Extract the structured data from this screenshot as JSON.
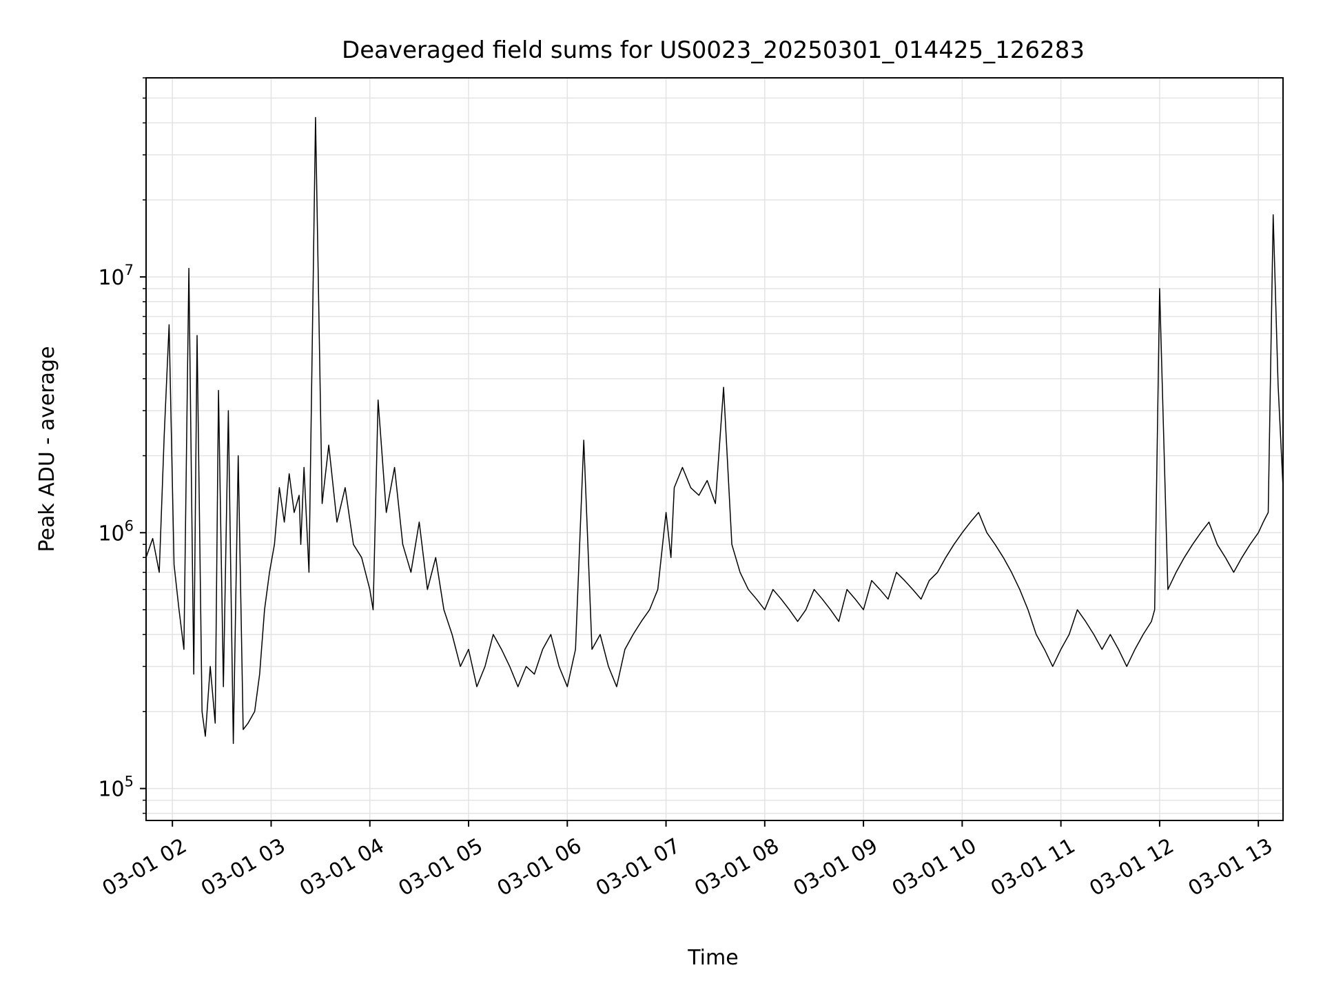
{
  "chart_data": {
    "type": "line",
    "title": "Deaveraged field sums for US0023_20250301_014425_126283",
    "xlabel": "Time",
    "ylabel": "Peak ADU - average",
    "x_ticks": [
      "03-01 02",
      "03-01 03",
      "03-01 04",
      "03-01 05",
      "03-01 06",
      "03-01 07",
      "03-01 08",
      "03-01 09",
      "03-01 10",
      "03-01 11",
      "03-01 12",
      "03-01 13"
    ],
    "y_scale": "log",
    "y_ticks": [
      {
        "value": 100000,
        "base": "10",
        "exp": "5"
      },
      {
        "value": 1000000,
        "base": "10",
        "exp": "6"
      },
      {
        "value": 10000000,
        "base": "10",
        "exp": "7"
      }
    ],
    "xlim": [
      "2025-03-01 01:44",
      "2025-03-01 13:15"
    ],
    "ylim": [
      75000,
      60000000
    ],
    "grid": true,
    "line_color": "#000000",
    "series": [
      {
        "x": [
          "2025-03-01 01:44",
          "2025-03-01 01:48",
          "2025-03-01 01:52",
          "2025-03-01 01:55",
          "2025-03-01 01:58",
          "2025-03-01 02:01",
          "2025-03-01 02:04",
          "2025-03-01 02:07",
          "2025-03-01 02:10",
          "2025-03-01 02:13",
          "2025-03-01 02:15",
          "2025-03-01 02:18",
          "2025-03-01 02:20",
          "2025-03-01 02:23",
          "2025-03-01 02:26",
          "2025-03-01 02:28",
          "2025-03-01 02:31",
          "2025-03-01 02:34",
          "2025-03-01 02:37",
          "2025-03-01 02:40",
          "2025-03-01 02:43",
          "2025-03-01 02:46",
          "2025-03-01 02:50",
          "2025-03-01 02:53",
          "2025-03-01 02:56",
          "2025-03-01 02:59",
          "2025-03-01 03:02",
          "2025-03-01 03:05",
          "2025-03-01 03:08",
          "2025-03-01 03:11",
          "2025-03-01 03:14",
          "2025-03-01 03:17",
          "2025-03-01 03:18",
          "2025-03-01 03:20",
          "2025-03-01 03:23",
          "2025-03-01 03:27",
          "2025-03-01 03:31",
          "2025-03-01 03:35",
          "2025-03-01 03:40",
          "2025-03-01 03:45",
          "2025-03-01 03:50",
          "2025-03-01 03:55",
          "2025-03-01 04:00",
          "2025-03-01 04:02",
          "2025-03-01 04:05",
          "2025-03-01 04:10",
          "2025-03-01 04:15",
          "2025-03-01 04:20",
          "2025-03-01 04:25",
          "2025-03-01 04:30",
          "2025-03-01 04:35",
          "2025-03-01 04:40",
          "2025-03-01 04:45",
          "2025-03-01 04:50",
          "2025-03-01 04:55",
          "2025-03-01 05:00",
          "2025-03-01 05:05",
          "2025-03-01 05:10",
          "2025-03-01 05:15",
          "2025-03-01 05:20",
          "2025-03-01 05:25",
          "2025-03-01 05:30",
          "2025-03-01 05:35",
          "2025-03-01 05:40",
          "2025-03-01 05:45",
          "2025-03-01 05:50",
          "2025-03-01 05:55",
          "2025-03-01 06:00",
          "2025-03-01 06:05",
          "2025-03-01 06:10",
          "2025-03-01 06:15",
          "2025-03-01 06:20",
          "2025-03-01 06:25",
          "2025-03-01 06:30",
          "2025-03-01 06:35",
          "2025-03-01 06:40",
          "2025-03-01 06:45",
          "2025-03-01 06:50",
          "2025-03-01 06:55",
          "2025-03-01 07:00",
          "2025-03-01 07:03",
          "2025-03-01 07:05",
          "2025-03-01 07:10",
          "2025-03-01 07:15",
          "2025-03-01 07:20",
          "2025-03-01 07:25",
          "2025-03-01 07:30",
          "2025-03-01 07:35",
          "2025-03-01 07:40",
          "2025-03-01 07:45",
          "2025-03-01 07:50",
          "2025-03-01 07:55",
          "2025-03-01 08:00",
          "2025-03-01 08:05",
          "2025-03-01 08:10",
          "2025-03-01 08:15",
          "2025-03-01 08:20",
          "2025-03-01 08:25",
          "2025-03-01 08:30",
          "2025-03-01 08:35",
          "2025-03-01 08:40",
          "2025-03-01 08:45",
          "2025-03-01 08:50",
          "2025-03-01 08:55",
          "2025-03-01 09:00",
          "2025-03-01 09:05",
          "2025-03-01 09:10",
          "2025-03-01 09:15",
          "2025-03-01 09:20",
          "2025-03-01 09:25",
          "2025-03-01 09:30",
          "2025-03-01 09:35",
          "2025-03-01 09:40",
          "2025-03-01 09:45",
          "2025-03-01 09:50",
          "2025-03-01 09:55",
          "2025-03-01 10:00",
          "2025-03-01 10:05",
          "2025-03-01 10:10",
          "2025-03-01 10:15",
          "2025-03-01 10:20",
          "2025-03-01 10:25",
          "2025-03-01 10:30",
          "2025-03-01 10:35",
          "2025-03-01 10:40",
          "2025-03-01 10:45",
          "2025-03-01 10:50",
          "2025-03-01 10:55",
          "2025-03-01 11:00",
          "2025-03-01 11:05",
          "2025-03-01 11:10",
          "2025-03-01 11:15",
          "2025-03-01 11:20",
          "2025-03-01 11:25",
          "2025-03-01 11:30",
          "2025-03-01 11:35",
          "2025-03-01 11:40",
          "2025-03-01 11:45",
          "2025-03-01 11:50",
          "2025-03-01 11:55",
          "2025-03-01 11:57",
          "2025-03-01 12:00",
          "2025-03-01 12:05",
          "2025-03-01 12:10",
          "2025-03-01 12:15",
          "2025-03-01 12:20",
          "2025-03-01 12:25",
          "2025-03-01 12:30",
          "2025-03-01 12:35",
          "2025-03-01 12:40",
          "2025-03-01 12:45",
          "2025-03-01 12:50",
          "2025-03-01 12:55",
          "2025-03-01 13:00",
          "2025-03-01 13:03",
          "2025-03-01 13:06",
          "2025-03-01 13:09",
          "2025-03-01 13:12",
          "2025-03-01 13:15"
        ],
        "y": [
          800000,
          950000,
          700000,
          2400000,
          6500000,
          750000,
          500000,
          350000,
          10800000,
          280000,
          5900000,
          200000,
          160000,
          300000,
          180000,
          3600000,
          250000,
          3000000,
          150000,
          2000000,
          170000,
          180000,
          200000,
          280000,
          500000,
          700000,
          900000,
          1500000,
          1100000,
          1700000,
          1200000,
          1400000,
          900000,
          1800000,
          700000,
          42000000,
          1300000,
          2200000,
          1100000,
          1500000,
          900000,
          800000,
          600000,
          500000,
          3300000,
          1200000,
          1800000,
          900000,
          700000,
          1100000,
          600000,
          800000,
          500000,
          400000,
          300000,
          350000,
          250000,
          300000,
          400000,
          350000,
          300000,
          250000,
          300000,
          280000,
          350000,
          400000,
          300000,
          250000,
          350000,
          2300000,
          350000,
          400000,
          300000,
          250000,
          350000,
          400000,
          450000,
          500000,
          600000,
          1200000,
          800000,
          1500000,
          1800000,
          1500000,
          1400000,
          1600000,
          1300000,
          3700000,
          900000,
          700000,
          600000,
          550000,
          500000,
          600000,
          550000,
          500000,
          450000,
          500000,
          600000,
          550000,
          500000,
          450000,
          600000,
          550000,
          500000,
          650000,
          600000,
          550000,
          700000,
          650000,
          600000,
          550000,
          650000,
          700000,
          800000,
          900000,
          1000000,
          1100000,
          1200000,
          1000000,
          900000,
          800000,
          700000,
          600000,
          500000,
          400000,
          350000,
          300000,
          350000,
          400000,
          500000,
          450000,
          400000,
          350000,
          400000,
          350000,
          300000,
          350000,
          400000,
          450000,
          500000,
          9000000,
          600000,
          700000,
          800000,
          900000,
          1000000,
          1100000,
          900000,
          800000,
          700000,
          800000,
          900000,
          1000000,
          1100000,
          1200000,
          17500000,
          3800000,
          1500000
        ],
        "y_original": [
          800000,
          950000,
          700000,
          2400000,
          6500000,
          750000,
          500000,
          350000,
          10800000,
          280000,
          5900000,
          200000,
          160000,
          300000,
          180000,
          3600000,
          250000,
          3000000,
          150000,
          2000000,
          170000,
          180000,
          200000,
          280000,
          500000,
          700000,
          900000,
          1500000,
          1100000,
          1700000,
          1200000,
          1400000,
          900000,
          1800000,
          700000,
          42000000,
          1300000,
          2200000,
          1100000,
          1500000,
          900000,
          800000,
          600000,
          500000,
          3300000,
          1200000,
          1800000,
          900000,
          700000,
          1100000,
          600000,
          800000,
          500000,
          400000,
          300000,
          350000,
          250000,
          300000,
          400000,
          350000,
          300000,
          250000,
          300000,
          280000,
          350000,
          400000,
          300000,
          250000,
          350000,
          2300000,
          350000,
          400000,
          300000,
          250000,
          350000,
          400000,
          450000,
          500000,
          600000,
          1200000,
          800000,
          1500000,
          1800000,
          1500000,
          1400000,
          1600000,
          1300000,
          3700000,
          900000,
          700000,
          600000,
          550000,
          500000,
          600000,
          550000,
          500000,
          450000,
          500000,
          600000,
          550000,
          500000,
          450000,
          600000,
          550000,
          500000,
          650000,
          600000,
          550000,
          700000,
          650000,
          600000,
          550000,
          650000,
          700000,
          800000,
          900000,
          1000000,
          1100000,
          1200000,
          1000000,
          900000,
          800000,
          700000,
          600000,
          500000,
          400000,
          350000,
          300000,
          350000,
          400000,
          500000,
          450000,
          400000,
          350000,
          400000,
          350000,
          300000,
          350000,
          400000,
          450000,
          500000,
          9000000,
          600000,
          700000,
          800000,
          900000,
          1000000,
          1100000,
          900000,
          800000,
          700000,
          800000,
          900000,
          1000000,
          1100000,
          1200000,
          17500000,
          3800000,
          1500000
        ]
      }
    ]
  }
}
